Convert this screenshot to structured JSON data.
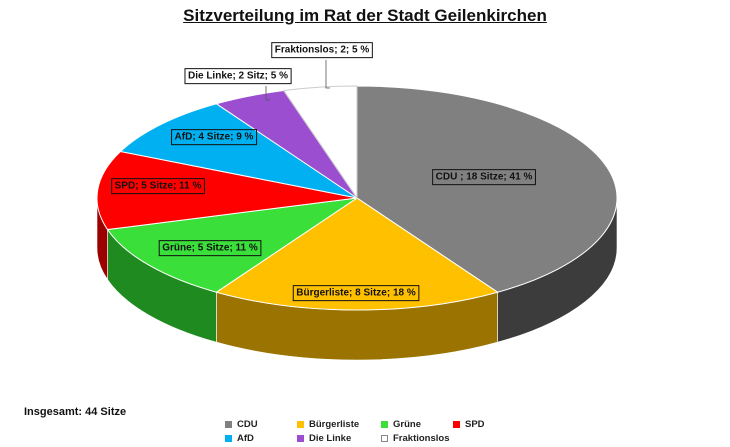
{
  "chart_data": {
    "type": "pie",
    "title": "Sitzverteilung im Rat der Stadt Geilenkirchen",
    "slices": [
      {
        "name": "CDU",
        "value": 18,
        "label": "CDU ; 18 Sitze; 41 %",
        "color": "#808080",
        "side_color": "#3c3c3c"
      },
      {
        "name": "Bürgerliste",
        "value": 8,
        "label": "Bürgerliste; 8 Sitze; 18 %",
        "color": "#ffc000",
        "side_color": "#9a7300"
      },
      {
        "name": "Grüne",
        "value": 5,
        "label": "Grüne; 5 Sitze; 11 %",
        "color": "#3adf3a",
        "side_color": "#1f8a1f"
      },
      {
        "name": "SPD",
        "value": 5,
        "label": "SPD; 5 Sitze; 11 %",
        "color": "#ff0000",
        "side_color": "#9a0000"
      },
      {
        "name": "AfD",
        "value": 4,
        "label": "AfD; 4 Sitze; 9 %",
        "color": "#00b0f0",
        "side_color": "#006f99"
      },
      {
        "name": "Die Linke",
        "value": 2,
        "label": "Die Linke; 2 Sitz; 5 %",
        "color": "#9b4fd0",
        "side_color": "#5e2d80"
      },
      {
        "name": "Fraktionslos",
        "value": 2,
        "label": "Fraktionslos; 2; 5 %",
        "color": "#ffffff",
        "side_color": "#d8d8d8"
      }
    ],
    "legend_placement": "bottom"
  },
  "total_label": "Insgesamt: 44 Sitze"
}
